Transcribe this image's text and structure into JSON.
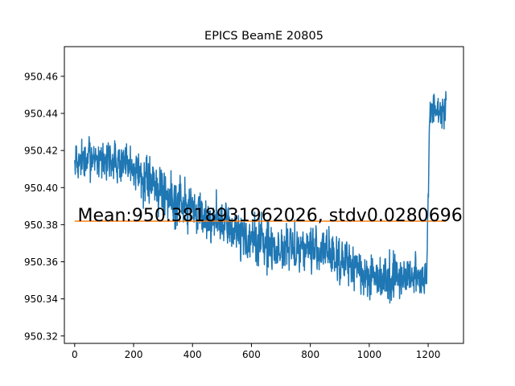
{
  "chart_data": {
    "type": "line",
    "title": "EPICS BeamE 20805",
    "xlabel": "",
    "ylabel": "",
    "xlim": [
      -35,
      1320
    ],
    "ylim": [
      950.316,
      950.476
    ],
    "x_ticks": [
      0,
      200,
      400,
      600,
      800,
      1000,
      1200
    ],
    "x_tick_labels": [
      "0",
      "200",
      "400",
      "600",
      "800",
      "1000",
      "1200"
    ],
    "y_ticks": [
      950.32,
      950.34,
      950.36,
      950.38,
      950.4,
      950.42,
      950.44,
      950.46
    ],
    "y_tick_labels": [
      "950.32",
      "950.34",
      "950.36",
      "950.38",
      "950.40",
      "950.42",
      "950.44",
      "950.46"
    ],
    "grid": false,
    "series": [
      {
        "role": "signal",
        "color": "#1f77b4",
        "n_points": 1262,
        "trend_x": [
          0,
          100,
          200,
          300,
          400,
          500,
          600,
          700,
          800,
          900,
          1000,
          1100,
          1195,
          1205,
          1261
        ],
        "trend_y": [
          950.413,
          950.416,
          950.41,
          950.398,
          950.388,
          950.38,
          950.372,
          950.367,
          950.368,
          950.362,
          950.352,
          950.352,
          950.352,
          950.441,
          950.442
        ],
        "noise_amplitude": [
          0.01,
          0.01,
          0.01,
          0.011,
          0.011,
          0.011,
          0.011,
          0.012,
          0.011,
          0.012,
          0.011,
          0.011,
          0.011,
          0.008,
          0.008
        ],
        "y_max": 950.469,
        "y_min": 950.323
      },
      {
        "role": "mean",
        "color": "#ff7f0e",
        "x": [
          0,
          1261
        ],
        "y": [
          950.3818931962026,
          950.3818931962026
        ]
      }
    ],
    "annotation": {
      "text": "Mean:950.3818931962026, stdv0.0280696",
      "x": 10,
      "y": 950.3818931962026
    }
  }
}
